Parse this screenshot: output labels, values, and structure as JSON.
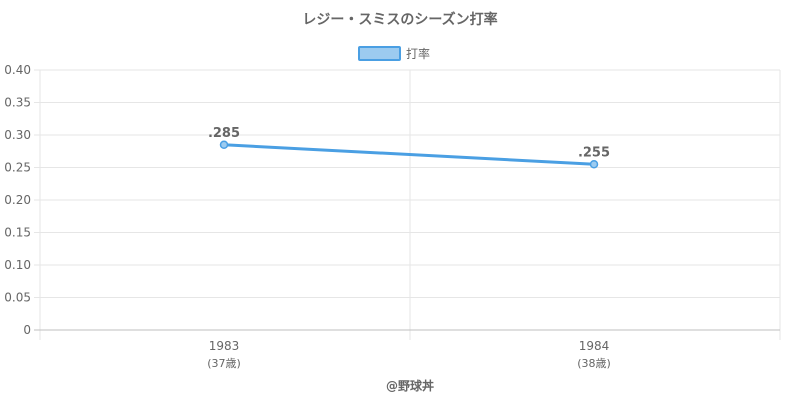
{
  "chart_data": {
    "type": "line",
    "title": "レジー・スミスのシーズン打率",
    "categories": [
      "1983",
      "1984"
    ],
    "category_sublabels": [
      "(37歳)",
      "(38歳)"
    ],
    "series": [
      {
        "name": "打率",
        "values": [
          0.285,
          0.255
        ],
        "data_labels": [
          ".285",
          ".255"
        ],
        "color": "#4a9fe3",
        "fill_color": "#9ccbf0"
      }
    ],
    "y_ticks": [
      "0",
      "0.05",
      "0.10",
      "0.15",
      "0.20",
      "0.25",
      "0.30",
      "0.35",
      "0.40"
    ],
    "ylim": [
      0,
      0.4
    ],
    "grid": true,
    "legend_position": "top-center"
  },
  "credit": "@野球丼"
}
